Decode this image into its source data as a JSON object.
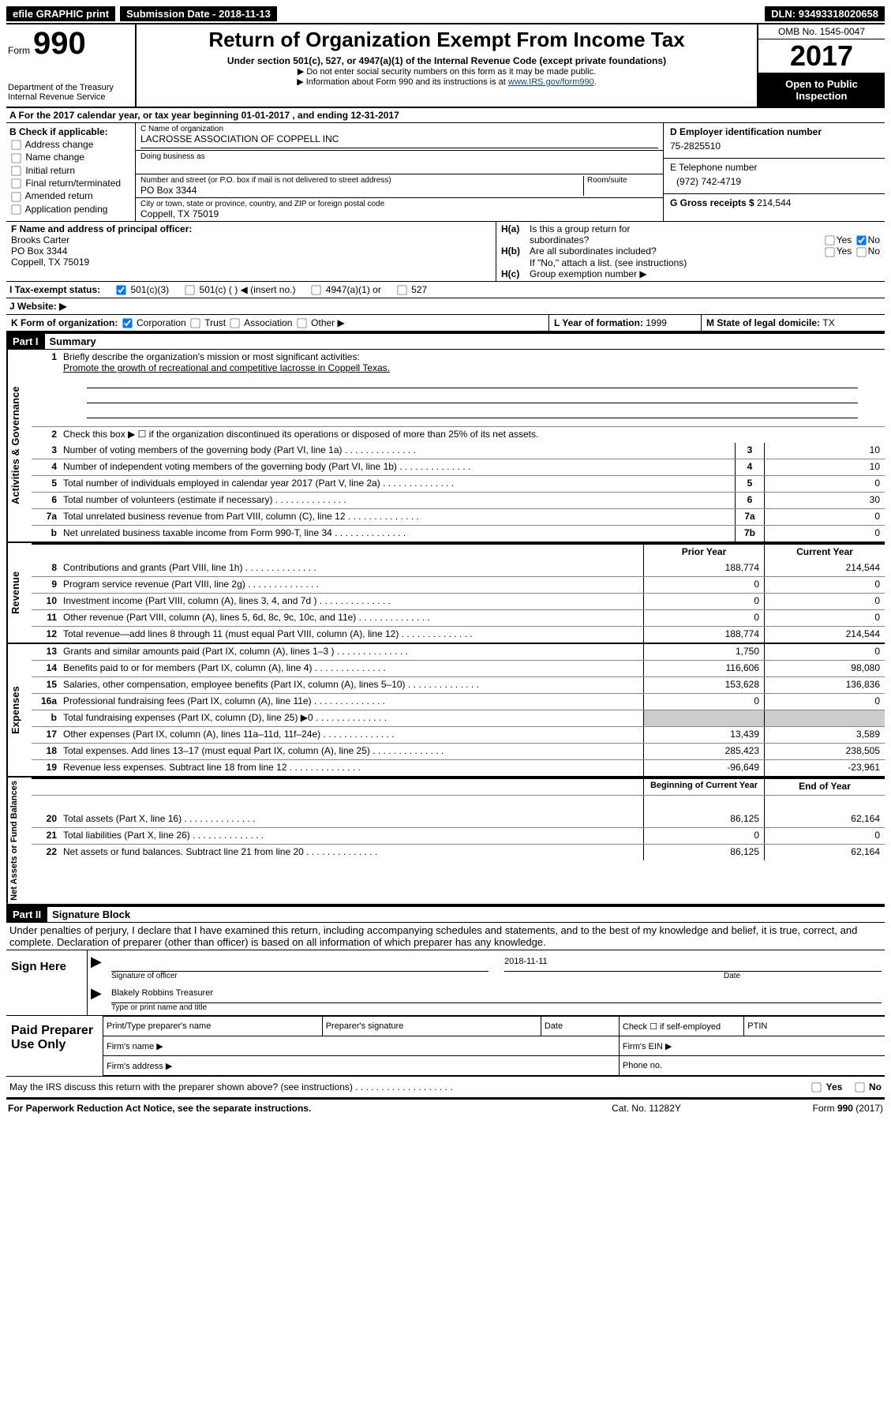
{
  "topbar": {
    "efile": "efile GRAPHIC print",
    "submission_label": "Submission Date - ",
    "submission_date": "2018-11-13",
    "dln_label": "DLN: ",
    "dln": "93493318020658"
  },
  "header": {
    "form_word": "Form",
    "form_num": "990",
    "dept": "Department of the Treasury",
    "irs": "Internal Revenue Service",
    "title": "Return of Organization Exempt From Income Tax",
    "sub": "Under section 501(c), 527, or 4947(a)(1) of the Internal Revenue Code (except private foundations)",
    "note1": "▶ Do not enter social security numbers on this form as it may be made public.",
    "note2_pre": "▶ Information about Form 990 and its instructions is at ",
    "note2_link": "www.IRS.gov/form990",
    "omb": "OMB No. 1545-0047",
    "year": "2017",
    "open1": "Open to Public",
    "open2": "Inspection"
  },
  "row_a": "A  For the 2017 calendar year, or tax year beginning 01-01-2017   , and ending 12-31-2017",
  "col_b": {
    "label": "B Check if applicable:",
    "opts": [
      "Address change",
      "Name change",
      "Initial return",
      "Final return/terminated",
      "Amended return",
      "Application pending"
    ]
  },
  "col_c": {
    "name_label": "C Name of organization",
    "name": "LACROSSE ASSOCIATION OF COPPELL INC",
    "dba_label": "Doing business as",
    "addr_label_l": "Number and street (or P.O. box if mail is not delivered to street address)",
    "addr_label_r": "Room/suite",
    "addr": "PO Box 3344",
    "city_label": "City or town, state or province, country, and ZIP or foreign postal code",
    "city": "Coppell, TX 75019"
  },
  "col_d": {
    "ein_label": "D Employer identification number",
    "ein": "75-2825510",
    "tel_label": "E Telephone number",
    "tel": "(972) 742-4719",
    "gross_label": "G Gross receipts $ ",
    "gross": "214,544"
  },
  "col_f": {
    "label": "F  Name and address of principal officer:",
    "name": "Brooks Carter",
    "addr1": "PO Box 3344",
    "addr2": "Coppell, TX  75019"
  },
  "col_h": {
    "a_l": "H(a)",
    "a_t1": "Is this a group return for",
    "a_t2": "subordinates?",
    "b_l": "H(b)",
    "b_t": "Are all subordinates included?",
    "b_note": "If \"No,\" attach a list. (see instructions)",
    "c_l": "H(c)",
    "c_t": "Group exemption number ▶",
    "yes": "Yes",
    "no": "No"
  },
  "row_i": {
    "label": "I  Tax-exempt status:",
    "o1": "501(c)(3)",
    "o2": "501(c) (  ) ◀ (insert no.)",
    "o3": "4947(a)(1) or",
    "o4": "527"
  },
  "row_j": "J  Website: ▶",
  "row_k": {
    "label": "K Form of organization:",
    "o1": "Corporation",
    "o2": "Trust",
    "o3": "Association",
    "o4": "Other ▶",
    "l_label": "L Year of formation: ",
    "l_val": "1999",
    "m_label": "M State of legal domicile: ",
    "m_val": "TX"
  },
  "part1": {
    "hdr": "Part I",
    "title": "Summary"
  },
  "gov": {
    "tab": "Activities & Governance",
    "l1": "Briefly describe the organization's mission or most significant activities:",
    "l1v": "Promote the growth of recreational and competitive lacrosse in Coppell Texas.",
    "l2": "Check this box ▶  ☐  if the organization discontinued its operations or disposed of more than 25% of its net assets.",
    "rows": [
      {
        "n": "3",
        "d": "Number of voting members of the governing body (Part VI, line 1a)",
        "bn": "3",
        "v": "10"
      },
      {
        "n": "4",
        "d": "Number of independent voting members of the governing body (Part VI, line 1b)",
        "bn": "4",
        "v": "10"
      },
      {
        "n": "5",
        "d": "Total number of individuals employed in calendar year 2017 (Part V, line 2a)",
        "bn": "5",
        "v": "0"
      },
      {
        "n": "6",
        "d": "Total number of volunteers (estimate if necessary)",
        "bn": "6",
        "v": "30"
      },
      {
        "n": "7a",
        "d": "Total unrelated business revenue from Part VIII, column (C), line 12",
        "bn": "7a",
        "v": "0"
      },
      {
        "n": "b",
        "d": "Net unrelated business taxable income from Form 990-T, line 34",
        "bn": "7b",
        "v": "0"
      }
    ]
  },
  "rev": {
    "tab": "Revenue",
    "hdr_prior": "Prior Year",
    "hdr_curr": "Current Year",
    "rows": [
      {
        "n": "8",
        "d": "Contributions and grants (Part VIII, line 1h)",
        "p": "188,774",
        "c": "214,544"
      },
      {
        "n": "9",
        "d": "Program service revenue (Part VIII, line 2g)",
        "p": "0",
        "c": "0"
      },
      {
        "n": "10",
        "d": "Investment income (Part VIII, column (A), lines 3, 4, and 7d )",
        "p": "0",
        "c": "0"
      },
      {
        "n": "11",
        "d": "Other revenue (Part VIII, column (A), lines 5, 6d, 8c, 9c, 10c, and 11e)",
        "p": "0",
        "c": "0"
      },
      {
        "n": "12",
        "d": "Total revenue—add lines 8 through 11 (must equal Part VIII, column (A), line 12)",
        "p": "188,774",
        "c": "214,544"
      }
    ]
  },
  "exp": {
    "tab": "Expenses",
    "rows": [
      {
        "n": "13",
        "d": "Grants and similar amounts paid (Part IX, column (A), lines 1–3 )",
        "p": "1,750",
        "c": "0"
      },
      {
        "n": "14",
        "d": "Benefits paid to or for members (Part IX, column (A), line 4)",
        "p": "116,606",
        "c": "98,080"
      },
      {
        "n": "15",
        "d": "Salaries, other compensation, employee benefits (Part IX, column (A), lines 5–10)",
        "p": "153,628",
        "c": "136,836"
      },
      {
        "n": "16a",
        "d": "Professional fundraising fees (Part IX, column (A), line 11e)",
        "p": "0",
        "c": "0"
      },
      {
        "n": "b",
        "d": "Total fundraising expenses (Part IX, column (D), line 25) ▶0",
        "p": "",
        "c": "",
        "shade": true
      },
      {
        "n": "17",
        "d": "Other expenses (Part IX, column (A), lines 11a–11d, 11f–24e)",
        "p": "13,439",
        "c": "3,589"
      },
      {
        "n": "18",
        "d": "Total expenses. Add lines 13–17 (must equal Part IX, column (A), line 25)",
        "p": "285,423",
        "c": "238,505"
      },
      {
        "n": "19",
        "d": "Revenue less expenses. Subtract line 18 from line 12",
        "p": "-96,649",
        "c": "-23,961"
      }
    ]
  },
  "net": {
    "tab": "Net Assets or Fund Balances",
    "hdr_beg": "Beginning of Current Year",
    "hdr_end": "End of Year",
    "rows": [
      {
        "n": "20",
        "d": "Total assets (Part X, line 16)",
        "p": "86,125",
        "c": "62,164"
      },
      {
        "n": "21",
        "d": "Total liabilities (Part X, line 26)",
        "p": "0",
        "c": "0"
      },
      {
        "n": "22",
        "d": "Net assets or fund balances. Subtract line 21 from line 20",
        "p": "86,125",
        "c": "62,164"
      }
    ]
  },
  "part2": {
    "hdr": "Part II",
    "title": "Signature Block",
    "perjury": "Under penalties of perjury, I declare that I have examined this return, including accompanying schedules and statements, and to the best of my knowledge and belief, it is true, correct, and complete. Declaration of preparer (other than officer) is based on all information of which preparer has any knowledge.",
    "sign_here": "Sign Here",
    "sig_label": "Signature of officer",
    "date_label": "Date",
    "date_val": "2018-11-11",
    "name_val": "Blakely Robbins Treasurer",
    "name_label": "Type or print name and title",
    "paid": "Paid Preparer Use Only",
    "p_name": "Print/Type preparer's name",
    "p_sig": "Preparer's signature",
    "p_date": "Date",
    "p_check": "Check ☐ if self-employed",
    "p_ptin": "PTIN",
    "p_firm": "Firm's name  ▶",
    "p_ein": "Firm's EIN ▶",
    "p_addr": "Firm's address ▶",
    "p_phone": "Phone no.",
    "discuss": "May the IRS discuss this return with the preparer shown above? (see instructions)   .   .   .   .   .   .   .   .   .   .   .   .   .   .   .   .   .   .   ."
  },
  "footer": {
    "l": "For Paperwork Reduction Act Notice, see the separate instructions.",
    "c": "Cat. No. 11282Y",
    "r": "Form 990 (2017)"
  }
}
